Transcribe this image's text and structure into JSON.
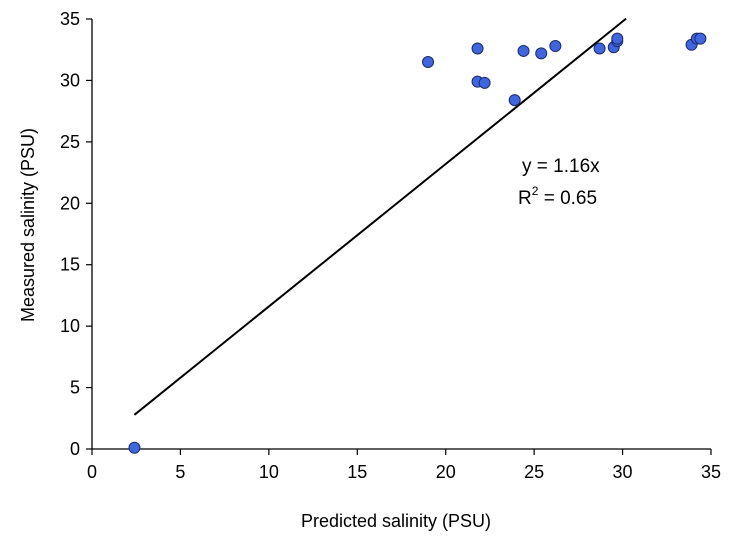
{
  "chart_data": {
    "type": "scatter",
    "xlabel": "Predicted salinity (PSU)",
    "ylabel": "Measured salinity (PSU)",
    "xlim": [
      0,
      35
    ],
    "ylim": [
      0,
      35
    ],
    "xticks": [
      0,
      5,
      10,
      15,
      20,
      25,
      30,
      35
    ],
    "yticks": [
      0,
      5,
      10,
      15,
      20,
      25,
      30,
      35
    ],
    "grid": false,
    "legend": "none",
    "series": [
      {
        "marker_color": "#3f66e0",
        "points": [
          {
            "x": 2.4,
            "y": 0.1
          },
          {
            "x": 19.0,
            "y": 31.5
          },
          {
            "x": 21.8,
            "y": 32.6
          },
          {
            "x": 21.8,
            "y": 29.9
          },
          {
            "x": 22.2,
            "y": 29.8
          },
          {
            "x": 23.9,
            "y": 28.4
          },
          {
            "x": 24.4,
            "y": 32.4
          },
          {
            "x": 25.4,
            "y": 32.2
          },
          {
            "x": 26.2,
            "y": 32.8
          },
          {
            "x": 28.7,
            "y": 32.6
          },
          {
            "x": 29.5,
            "y": 32.7
          },
          {
            "x": 29.7,
            "y": 33.2
          },
          {
            "x": 29.7,
            "y": 33.4
          },
          {
            "x": 33.9,
            "y": 32.9
          },
          {
            "x": 34.2,
            "y": 33.4
          },
          {
            "x": 34.4,
            "y": 33.4
          }
        ]
      }
    ],
    "trendline": {
      "slope": 1.16,
      "intercept": 0,
      "x_range": [
        2.4,
        30.2
      ],
      "color": "#000000"
    },
    "annotations": {
      "equation": "y = 1.16x",
      "r2_prefix": "R",
      "r2_superscript": "2",
      "r2_suffix": " = 0.65"
    }
  }
}
